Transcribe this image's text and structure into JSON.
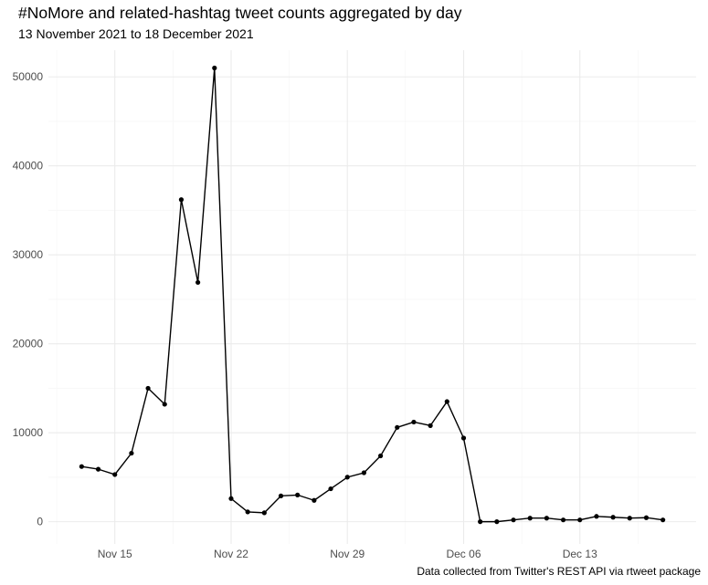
{
  "chart_data": {
    "type": "line",
    "title": "#NoMore and related-hashtag tweet counts aggregated by day",
    "subtitle": "13 November 2021 to 18 December 2021",
    "caption": "Data collected from Twitter's REST API via rtweet package",
    "xlabel": "",
    "ylabel": "",
    "x_type": "date",
    "xlim": [
      "2021-11-11",
      "2021-12-20"
    ],
    "ylim": [
      -2500,
      53000
    ],
    "x_ticks": [
      {
        "date": "2021-11-15",
        "label": "Nov 15"
      },
      {
        "date": "2021-11-22",
        "label": "Nov 22"
      },
      {
        "date": "2021-11-29",
        "label": "Nov 29"
      },
      {
        "date": "2021-12-06",
        "label": "Dec 06"
      },
      {
        "date": "2021-12-13",
        "label": "Dec 13"
      }
    ],
    "y_ticks": [
      0,
      10000,
      20000,
      30000,
      40000,
      50000
    ],
    "grid": true,
    "colors": {
      "line": "#000000",
      "grid_major": "#ebebeb",
      "grid_minor": "#f5f5f5",
      "tick_text": "#4d4d4d"
    },
    "series": [
      {
        "x": [
          "2021-11-13",
          "2021-11-14",
          "2021-11-15",
          "2021-11-16",
          "2021-11-17",
          "2021-11-18",
          "2021-11-19",
          "2021-11-20",
          "2021-11-21",
          "2021-11-22",
          "2021-11-23",
          "2021-11-24",
          "2021-11-25",
          "2021-11-26",
          "2021-11-27",
          "2021-11-28",
          "2021-11-29",
          "2021-11-30",
          "2021-12-01",
          "2021-12-02",
          "2021-12-03",
          "2021-12-04",
          "2021-12-05",
          "2021-12-06",
          "2021-12-07",
          "2021-12-08",
          "2021-12-09",
          "2021-12-10",
          "2021-12-11",
          "2021-12-12",
          "2021-12-13",
          "2021-12-14",
          "2021-12-15",
          "2021-12-16",
          "2021-12-17",
          "2021-12-18"
        ],
        "values": [
          6200,
          5900,
          5300,
          7700,
          15000,
          13200,
          36200,
          26900,
          51000,
          2600,
          1100,
          1000,
          2900,
          3000,
          2400,
          3700,
          5000,
          5500,
          7400,
          10600,
          11200,
          10800,
          13500,
          9400,
          0,
          0,
          200,
          400,
          400,
          200,
          200,
          600,
          500,
          400,
          450,
          200
        ]
      }
    ]
  }
}
